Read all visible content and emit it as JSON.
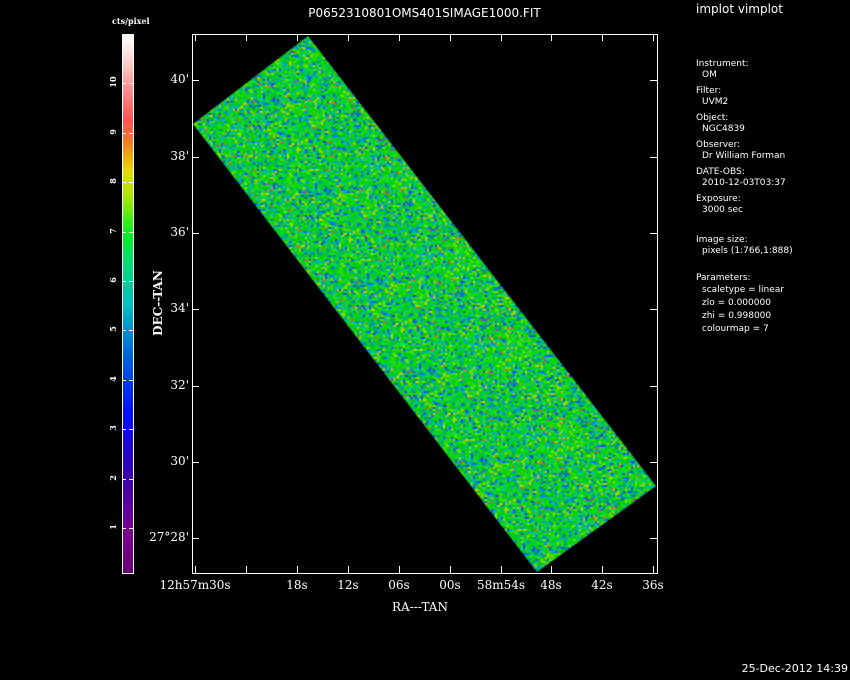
{
  "title": "P0652310801OMS401SIMAGE1000.FIT",
  "app_title": "implot vimplot",
  "colorbar": {
    "unit": "cts/pixel",
    "labels": [
      "1",
      "2",
      "3",
      "4",
      "5",
      "6",
      "7",
      "8",
      "9",
      "10"
    ],
    "colormap": "rainbow"
  },
  "info": [
    {
      "label": "Instrument:",
      "value": "OM"
    },
    {
      "label": "Filter:",
      "value": "UVM2"
    },
    {
      "label": "Object:",
      "value": "NGC4839"
    },
    {
      "label": "Observer:",
      "value": "Dr William Forman"
    },
    {
      "label": "DATE-OBS:",
      "value": "2010-12-03T03:37"
    },
    {
      "label": "Exposure:",
      "value": "3000 sec"
    }
  ],
  "image_size": {
    "label": "Image size:",
    "value": "pixels (1:766,1:888)"
  },
  "parameters": {
    "label": "Parameters:",
    "items": [
      "scaletype = linear",
      "zlo = 0.000000",
      "zhi = 0.998000",
      "colourmap =    7"
    ]
  },
  "axes": {
    "xlabel": "RA---TAN",
    "ylabel": "DEC--TAN",
    "xticks": [
      "12h57m30s",
      "18s",
      "12s",
      "06s",
      "00s",
      "58m54s",
      "48s",
      "42s",
      "36s"
    ],
    "yticks": [
      "27°28'",
      "30'",
      "32'",
      "34'",
      "36'",
      "38'",
      "40'"
    ]
  },
  "timestamp": "25-Dec-2012 14:39"
}
